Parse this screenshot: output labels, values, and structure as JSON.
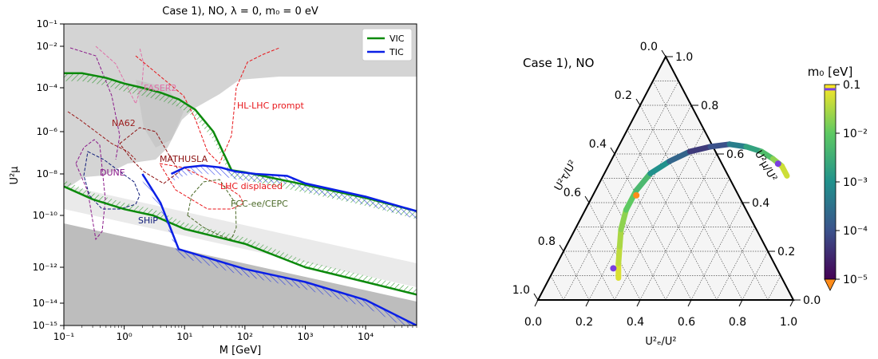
{
  "chart_data": [
    {
      "type": "line",
      "title": "Case 1), NO, λ = 0,  m₀ = 0 eV",
      "xlabel": "M [GeV]",
      "ylabel": "U²μ",
      "xscale": "log",
      "yscale": "log",
      "xlim": [
        0.1,
        70000
      ],
      "ylim": [
        1e-15,
        0.1
      ],
      "xtick_labels": [
        "10⁻¹",
        "10⁰",
        "10¹",
        "10²",
        "10³",
        "10⁴"
      ],
      "xtick_values": [
        0.1,
        1,
        10,
        100,
        1000,
        10000
      ],
      "ytick_labels": [
        "10⁻¹⁵",
        "10⁻¹⁴",
        "10⁻¹²",
        "10⁻¹⁰",
        "10⁻⁸",
        "10⁻⁶",
        "10⁻⁴",
        "10⁻²",
        "10⁻¹"
      ],
      "ytick_values": [
        1e-15,
        1e-14,
        1e-12,
        1e-10,
        1e-08,
        1e-06,
        0.0001,
        0.01,
        0.1
      ],
      "legend_position": "top-right",
      "series": [
        {
          "name": "VIC",
          "color": "#0c8a0c",
          "upper": {
            "x": [
              0.1,
              0.2,
              0.5,
              1,
              2,
              4,
              8,
              15,
              30,
              60,
              100,
              1000,
              10000,
              70000
            ],
            "y": [
              0.0005,
              0.0005,
              0.0003,
              0.00016,
              0.0001,
              6e-05,
              3e-05,
              1e-05,
              1e-06,
              1.5e-08,
              1.2e-08,
              3e-09,
              7e-10,
              1.6e-10
            ]
          },
          "lower": {
            "x": [
              0.1,
              0.3,
              1,
              3,
              10,
              100,
              1000,
              10000,
              70000
            ],
            "y": [
              2.5e-09,
              6e-10,
              2e-10,
              1e-10,
              3e-11,
              8e-12,
              1e-12,
              1.5e-13,
              3e-14
            ]
          }
        },
        {
          "name": "TIC",
          "color": "#0a1fe6",
          "upper": {
            "x": [
              6,
              10,
              20,
              40,
              70,
              150,
              500,
              1000,
              10000,
              70000
            ],
            "y": [
              1e-08,
              2e-08,
              2.5e-08,
              2e-08,
              1.3e-08,
              1e-08,
              8e-09,
              3.5e-09,
              8e-10,
              1.6e-10
            ]
          },
          "lower": {
            "x": [
              2,
              4,
              8,
              100,
              1000,
              10000,
              70000
            ],
            "y": [
              1e-08,
              4e-10,
              5e-12,
              8e-13,
              1.5e-13,
              1.5e-14,
              1e-15
            ]
          }
        }
      ],
      "annotations": [
        {
          "text": "FASER2",
          "color": "#e070a8"
        },
        {
          "text": "NA62",
          "color": "#9b1c1c"
        },
        {
          "text": "HL-LHC prompt",
          "color": "#e8161a"
        },
        {
          "text": "MATHUSLA",
          "color": "#8b1010"
        },
        {
          "text": "DUNE",
          "color": "#8a1a8a"
        },
        {
          "text": "LHC displaced",
          "color": "#e8161a"
        },
        {
          "text": "FCC-ee/CEPC",
          "color": "#4d6b2a"
        },
        {
          "text": "SHiP",
          "color": "#0f1c7a"
        }
      ]
    },
    {
      "type": "scatter",
      "subtype": "ternary",
      "title": "Case 1), NO",
      "axis_labels": {
        "bottom": "U²ₑ/U²",
        "right": "U²μ/U²",
        "left": "U²τ/U²"
      },
      "tick_labels": [
        "0.0",
        "0.2",
        "0.4",
        "0.6",
        "0.8",
        "1.0"
      ],
      "tick_values": [
        0,
        0.2,
        0.4,
        0.6,
        0.8,
        1.0
      ],
      "band": {
        "e": [
          0.27,
          0.24,
          0.21,
          0.18,
          0.16,
          0.16,
          0.18,
          0.23,
          0.29,
          0.36,
          0.43,
          0.5,
          0.57,
          0.63,
          0.68,
          0.72
        ],
        "mu": [
          0.09,
          0.15,
          0.22,
          0.29,
          0.37,
          0.45,
          0.52,
          0.57,
          0.61,
          0.63,
          0.64,
          0.63,
          0.61,
          0.58,
          0.55,
          0.51
        ],
        "m0": [
          0.06,
          0.04,
          0.03,
          0.02,
          0.01,
          0.005,
          0.001,
          0.0002,
          5e-05,
          0.0001,
          0.0005,
          0.002,
          0.006,
          0.02,
          0.05,
          0.09
        ]
      },
      "markers": [
        {
          "e": 0.23,
          "mu": 0.13,
          "color": "#7a3fe0"
        },
        {
          "e": 0.17,
          "mu": 0.43,
          "color": "#ff8c1a"
        },
        {
          "e": 0.66,
          "mu": 0.56,
          "color": "#7a3fe0"
        }
      ],
      "colorbar": {
        "label": "m₀ [eV]",
        "scale": "log",
        "range": [
          1e-05,
          0.1
        ],
        "tick_labels": [
          "0.1",
          "10⁻²",
          "10⁻³",
          "10⁻⁴",
          "10⁻⁵"
        ],
        "tick_values": [
          0.1,
          0.01,
          0.001,
          0.0001,
          1e-05
        ],
        "colormap": "viridis",
        "under_color": "#ff8c1a",
        "marker_value": 0.08,
        "marker_color": "#7a3fe0"
      }
    }
  ]
}
